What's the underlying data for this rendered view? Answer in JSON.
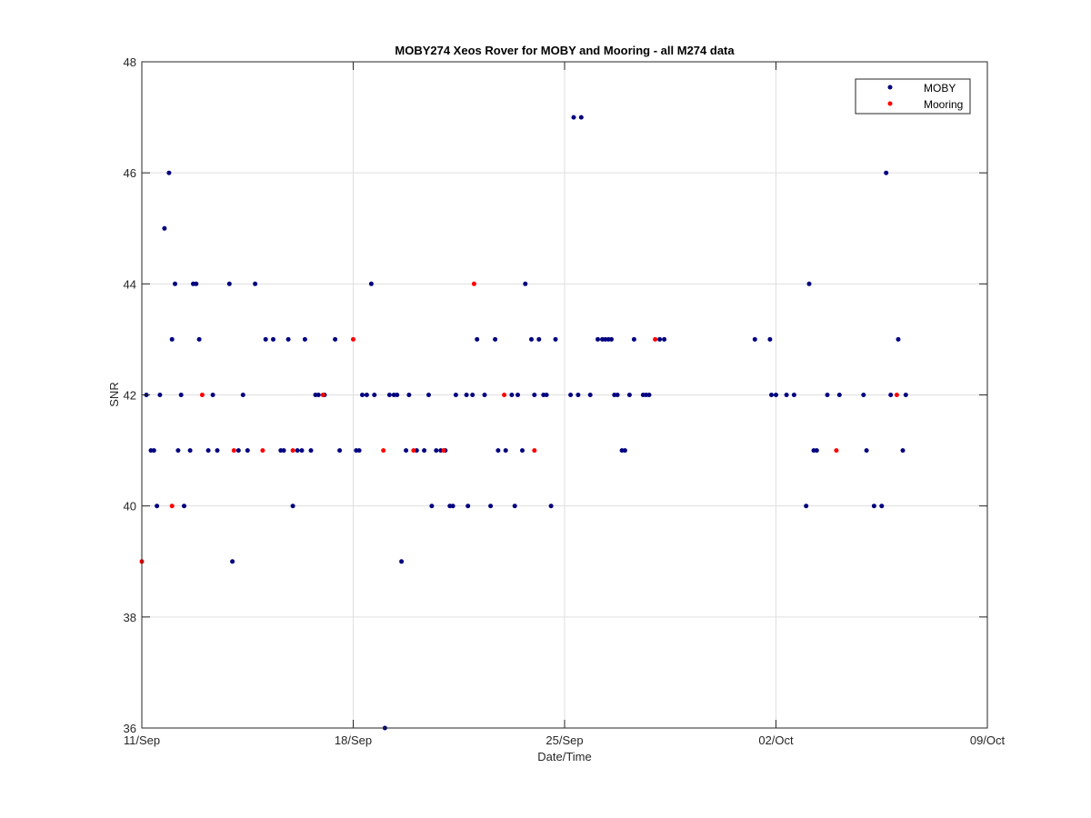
{
  "chart_data": {
    "type": "scatter",
    "title": "MOBY274 Xeos Rover for MOBY and Mooring - all M274 data",
    "xlabel": "Date/Time",
    "ylabel": "SNR",
    "x_unit": "days",
    "xlim": [
      "11/Sep",
      "09/Oct"
    ],
    "ylim": [
      36,
      48
    ],
    "x_tick_labels": [
      "11/Sep",
      "18/Sep",
      "25/Sep",
      "02/Oct",
      "09/Oct"
    ],
    "y_ticks": [
      36,
      38,
      40,
      42,
      44,
      46,
      48
    ],
    "grid": true,
    "legend_position": "top-right",
    "colors": {
      "moby": "#00007f",
      "mooring": "#ff0000",
      "grid": "#dfdfdf",
      "axis": "#262626"
    },
    "series": [
      {
        "name": "MOBY",
        "marker": "dot",
        "points": [
          [
            0.15,
            42
          ],
          [
            0.3,
            41
          ],
          [
            0.4,
            41
          ],
          [
            0.5,
            40
          ],
          [
            0.6,
            42
          ],
          [
            0.75,
            45
          ],
          [
            0.9,
            46
          ],
          [
            1.0,
            43
          ],
          [
            1.1,
            44
          ],
          [
            1.2,
            41
          ],
          [
            1.3,
            42
          ],
          [
            1.4,
            40
          ],
          [
            1.6,
            41
          ],
          [
            1.7,
            44
          ],
          [
            1.8,
            44
          ],
          [
            1.9,
            43
          ],
          [
            2.2,
            41
          ],
          [
            2.35,
            42
          ],
          [
            2.5,
            41
          ],
          [
            2.9,
            44
          ],
          [
            3.0,
            39
          ],
          [
            3.2,
            41
          ],
          [
            3.35,
            42
          ],
          [
            3.5,
            41
          ],
          [
            3.75,
            44
          ],
          [
            4.1,
            43
          ],
          [
            4.35,
            43
          ],
          [
            4.6,
            41
          ],
          [
            4.7,
            41
          ],
          [
            4.85,
            43
          ],
          [
            5.0,
            40
          ],
          [
            5.15,
            41
          ],
          [
            5.3,
            41
          ],
          [
            5.4,
            43
          ],
          [
            5.6,
            41
          ],
          [
            5.75,
            42
          ],
          [
            5.85,
            42
          ],
          [
            6.05,
            42
          ],
          [
            6.4,
            43
          ],
          [
            6.55,
            41
          ],
          [
            7.1,
            41
          ],
          [
            7.2,
            41
          ],
          [
            7.3,
            42
          ],
          [
            7.45,
            42
          ],
          [
            7.6,
            44
          ],
          [
            7.7,
            42
          ],
          [
            8.05,
            36
          ],
          [
            8.2,
            42
          ],
          [
            8.35,
            42
          ],
          [
            8.45,
            42
          ],
          [
            8.6,
            39
          ],
          [
            8.75,
            41
          ],
          [
            8.85,
            42
          ],
          [
            9.1,
            41
          ],
          [
            9.35,
            41
          ],
          [
            9.5,
            42
          ],
          [
            9.6,
            40
          ],
          [
            9.75,
            41
          ],
          [
            9.9,
            41
          ],
          [
            10.05,
            41
          ],
          [
            10.2,
            40
          ],
          [
            10.3,
            40
          ],
          [
            10.4,
            42
          ],
          [
            10.75,
            42
          ],
          [
            10.8,
            40
          ],
          [
            10.95,
            42
          ],
          [
            11.1,
            43
          ],
          [
            11.35,
            42
          ],
          [
            11.55,
            40
          ],
          [
            11.7,
            43
          ],
          [
            11.8,
            41
          ],
          [
            12.05,
            41
          ],
          [
            12.25,
            42
          ],
          [
            12.35,
            40
          ],
          [
            12.45,
            42
          ],
          [
            12.6,
            41
          ],
          [
            12.7,
            44
          ],
          [
            12.9,
            43
          ],
          [
            13.0,
            42
          ],
          [
            13.15,
            43
          ],
          [
            13.3,
            42
          ],
          [
            13.4,
            42
          ],
          [
            13.55,
            40
          ],
          [
            13.7,
            43
          ],
          [
            14.2,
            42
          ],
          [
            14.3,
            47
          ],
          [
            14.45,
            42
          ],
          [
            14.55,
            47
          ],
          [
            14.85,
            42
          ],
          [
            15.1,
            43
          ],
          [
            15.25,
            43
          ],
          [
            15.35,
            43
          ],
          [
            15.45,
            43
          ],
          [
            15.55,
            43
          ],
          [
            15.65,
            42
          ],
          [
            15.75,
            42
          ],
          [
            15.9,
            41
          ],
          [
            16.0,
            41
          ],
          [
            16.15,
            42
          ],
          [
            16.3,
            43
          ],
          [
            16.6,
            42
          ],
          [
            16.7,
            42
          ],
          [
            16.8,
            42
          ],
          [
            17.15,
            43
          ],
          [
            17.3,
            43
          ],
          [
            20.3,
            43
          ],
          [
            20.8,
            43
          ],
          [
            20.85,
            42
          ],
          [
            21.0,
            42
          ],
          [
            21.35,
            42
          ],
          [
            21.6,
            42
          ],
          [
            22.0,
            40
          ],
          [
            22.1,
            44
          ],
          [
            22.25,
            41
          ],
          [
            22.35,
            41
          ],
          [
            22.7,
            42
          ],
          [
            23.1,
            42
          ],
          [
            23.9,
            42
          ],
          [
            24.0,
            41
          ],
          [
            24.25,
            40
          ],
          [
            24.5,
            40
          ],
          [
            24.65,
            46
          ],
          [
            24.8,
            42
          ],
          [
            25.05,
            43
          ],
          [
            25.2,
            41
          ],
          [
            25.3,
            42
          ]
        ]
      },
      {
        "name": "Mooring",
        "marker": "dot",
        "points": [
          [
            0.0,
            39
          ],
          [
            1.0,
            40
          ],
          [
            2.0,
            42
          ],
          [
            3.05,
            41
          ],
          [
            4.0,
            41
          ],
          [
            5.0,
            41
          ],
          [
            6.0,
            42
          ],
          [
            7.0,
            43
          ],
          [
            8.0,
            41
          ],
          [
            9.0,
            41
          ],
          [
            10.0,
            41
          ],
          [
            11.0,
            44
          ],
          [
            12.0,
            42
          ],
          [
            13.0,
            41
          ],
          [
            17.0,
            43
          ],
          [
            23.0,
            41
          ],
          [
            25.0,
            42
          ]
        ]
      }
    ]
  }
}
